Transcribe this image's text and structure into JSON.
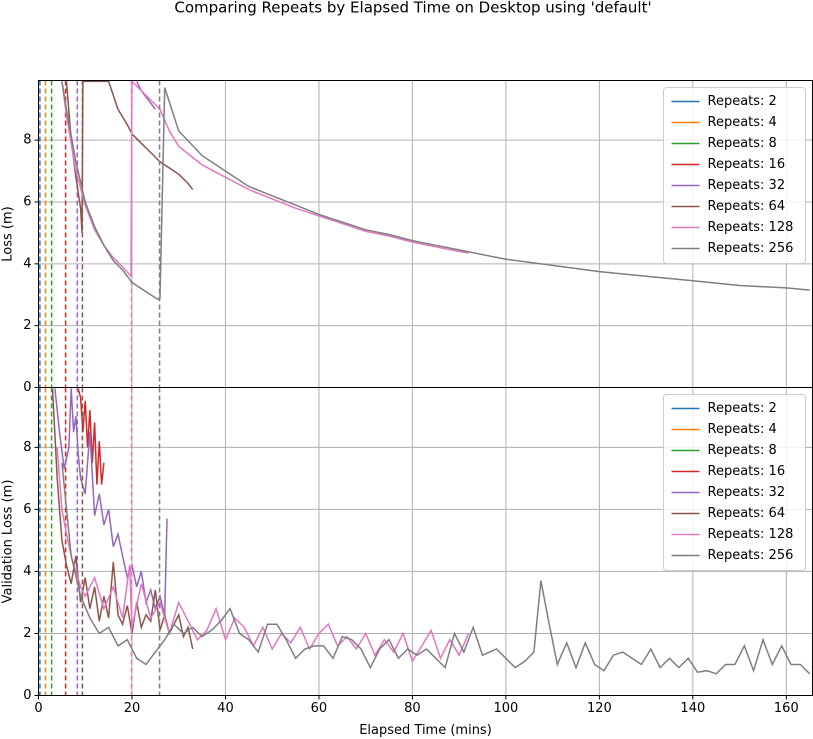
{
  "figure_title": "Comparing Repeats by Elapsed Time on Desktop using 'default'",
  "chart_data": [
    {
      "type": "line",
      "ylabel": "Loss (m)",
      "xlim": [
        0,
        165.6
      ],
      "ylim": [
        0,
        9.93
      ],
      "xticks": [
        0,
        20,
        40,
        60,
        80,
        100,
        120,
        140,
        160
      ],
      "yticks": [
        0,
        2,
        4,
        6,
        8
      ],
      "grid": true,
      "legend": "upper right",
      "show_xtick_labels": false,
      "series": [
        {
          "name": "Repeats: 2",
          "color": "#1f77b4",
          "end_line": 0.3,
          "x": [],
          "values": []
        },
        {
          "name": "Repeats: 4",
          "color": "#ff7f0e",
          "end_line": 1.5,
          "x": [],
          "values": []
        },
        {
          "name": "Repeats: 8",
          "color": "#2ca02c",
          "end_line": 2.8,
          "x": [],
          "values": []
        },
        {
          "name": "Repeats: 16",
          "color": "#d62728",
          "end_line": 5.8,
          "x": [],
          "values": []
        },
        {
          "name": "Repeats: 32",
          "color": "#9467bd",
          "end_line": 8.3,
          "x": [
            21,
            22,
            23,
            24,
            25
          ],
          "values": [
            9.9,
            9.6,
            9.4,
            9.2,
            9.0
          ]
        },
        {
          "name": "Repeats: 64",
          "color": "#8c564b",
          "end_line": 9.4,
          "x": [
            6,
            7,
            8,
            9,
            9.3,
            9.5,
            15,
            17,
            19,
            20,
            22,
            24,
            26,
            28,
            30,
            32,
            33
          ],
          "values": [
            9.9,
            8,
            6.8,
            5.8,
            5.0,
            9.9,
            9.9,
            9,
            8.5,
            8.2,
            7.9,
            7.6,
            7.3,
            7.1,
            6.9,
            6.6,
            6.4
          ]
        },
        {
          "name": "Repeats: 128",
          "color": "#e377c2",
          "end_line": 19.9,
          "x": [
            5,
            6,
            8,
            10,
            12,
            14,
            16,
            18,
            19.8,
            20,
            22,
            24,
            26,
            28,
            30,
            35,
            40,
            45,
            50,
            55,
            60,
            65,
            70,
            75,
            80,
            85,
            90,
            92
          ],
          "values": [
            9.9,
            8.8,
            7,
            5.9,
            5.1,
            4.6,
            4.2,
            3.9,
            3.6,
            9.9,
            9.6,
            9.3,
            9,
            8.3,
            7.8,
            7.2,
            6.8,
            6.4,
            6.1,
            5.8,
            5.55,
            5.3,
            5.05,
            4.9,
            4.7,
            4.55,
            4.4,
            4.35
          ]
        },
        {
          "name": "Repeats: 256",
          "color": "#7f7f7f",
          "end_line": 25.9,
          "x": [
            5,
            6,
            8,
            10,
            12,
            14,
            16,
            18,
            20,
            22,
            24,
            25.5,
            26,
            27,
            30,
            35,
            40,
            45,
            50,
            55,
            60,
            65,
            70,
            75,
            80,
            85,
            90,
            95,
            100,
            110,
            120,
            130,
            140,
            150,
            160,
            165
          ],
          "values": [
            9.9,
            9,
            7.3,
            6,
            5.2,
            4.6,
            4.1,
            3.8,
            3.4,
            3.2,
            3.0,
            2.85,
            2.9,
            9.7,
            8.3,
            7.5,
            7.0,
            6.5,
            6.2,
            5.9,
            5.6,
            5.35,
            5.1,
            4.95,
            4.75,
            4.6,
            4.45,
            4.3,
            4.15,
            3.95,
            3.75,
            3.6,
            3.45,
            3.3,
            3.22,
            3.15
          ]
        }
      ]
    },
    {
      "type": "line",
      "ylabel": "Validation Loss (m)",
      "xlabel": "Elapsed Time (mins)",
      "xlim": [
        0,
        165.6
      ],
      "ylim": [
        0,
        9.93
      ],
      "xticks": [
        0,
        20,
        40,
        60,
        80,
        100,
        120,
        140,
        160
      ],
      "yticks": [
        0,
        2,
        4,
        6,
        8
      ],
      "grid": true,
      "legend": "upper right",
      "show_xtick_labels": true,
      "series": [
        {
          "name": "Repeats: 2",
          "color": "#1f77b4",
          "end_line": 0.3,
          "x": [],
          "values": []
        },
        {
          "name": "Repeats: 4",
          "color": "#ff7f0e",
          "end_line": 1.5,
          "x": [],
          "values": []
        },
        {
          "name": "Repeats: 8",
          "color": "#2ca02c",
          "end_line": 2.8,
          "x": [],
          "values": []
        },
        {
          "name": "Repeats: 16",
          "color": "#d62728",
          "end_line": 5.8,
          "x": [
            8.5,
            9,
            9.5,
            10,
            10.5,
            11,
            11.5,
            12,
            12.5,
            13,
            13.5,
            14
          ],
          "values": [
            9.9,
            9.6,
            8.5,
            9.5,
            8.0,
            9.2,
            7.5,
            8.8,
            6.8,
            8.2,
            6.8,
            7.5
          ]
        },
        {
          "name": "Repeats: 32",
          "color": "#9467bd",
          "end_line": 8.3,
          "x": [
            3.5,
            4.5,
            5.5,
            6.5,
            7,
            7.5,
            8,
            8.5,
            9,
            10,
            11,
            12,
            13,
            14,
            15,
            16,
            17,
            18,
            19,
            20,
            21,
            22,
            23,
            24,
            25,
            26,
            27,
            27.5
          ],
          "values": [
            9.9,
            8.5,
            7.3,
            8.0,
            9.9,
            8.5,
            9.0,
            7.8,
            7.0,
            6.5,
            8.5,
            5.8,
            6.5,
            5.5,
            6.0,
            4.8,
            5.2,
            4.5,
            3.8,
            4.2,
            3.5,
            4.0,
            3.0,
            3.4,
            2.8,
            3.2,
            2.6,
            5.7
          ]
        },
        {
          "name": "Repeats: 64",
          "color": "#8c564b",
          "end_line": 9.4,
          "x": [
            3,
            4,
            5,
            6,
            7,
            8,
            9,
            10,
            11,
            12,
            13,
            14,
            15,
            16,
            17,
            18,
            19,
            20,
            21,
            22,
            23,
            24,
            25,
            26,
            27,
            28,
            29,
            30,
            31,
            32,
            33
          ],
          "values": [
            9.9,
            7,
            5,
            4.2,
            3.6,
            4.5,
            3.0,
            3.8,
            2.8,
            3.5,
            2.4,
            3.2,
            2.5,
            4.3,
            2.6,
            2.3,
            2.9,
            2.0,
            3.0,
            2.2,
            2.6,
            2.4,
            3.4,
            2.1,
            2.6,
            2.0,
            2.3,
            2.6,
            1.9,
            2.2,
            1.5
          ]
        },
        {
          "name": "Repeats: 128",
          "color": "#e377c2",
          "end_line": 19.9,
          "x": [
            4,
            5,
            6,
            7,
            8,
            9,
            10,
            12,
            14,
            16,
            18,
            19.5,
            20,
            22,
            24,
            26,
            28,
            30,
            32,
            34,
            36,
            38,
            40,
            42,
            44,
            46,
            48,
            50,
            52,
            54,
            56,
            58,
            60,
            62,
            64,
            66,
            68,
            70,
            72,
            74,
            76,
            78,
            80,
            82,
            84,
            86,
            88,
            90,
            92
          ],
          "values": [
            8,
            6,
            5.2,
            4.5,
            4.0,
            3.5,
            3.2,
            3.8,
            2.8,
            3.5,
            2.5,
            4.2,
            2.2,
            3.6,
            2.5,
            3.0,
            2.0,
            3.0,
            2.4,
            1.8,
            2.1,
            2.8,
            1.8,
            2.5,
            2.2,
            1.6,
            2.2,
            1.5,
            2.0,
            1.7,
            2.2,
            1.5,
            2.0,
            2.3,
            1.6,
            1.9,
            1.5,
            2.0,
            1.3,
            1.8,
            1.4,
            2.0,
            1.1,
            1.6,
            2.1,
            1.2,
            1.8,
            1.3,
            2.0
          ]
        },
        {
          "name": "Repeats: 256",
          "color": "#7f7f7f",
          "end_line": 25.9,
          "x": [
            5,
            7,
            9,
            11,
            13,
            15,
            17,
            19,
            21,
            23,
            25,
            27,
            29,
            31,
            33,
            35,
            37,
            39,
            41,
            43,
            45,
            47,
            49,
            51,
            53,
            55,
            57,
            59,
            61,
            63,
            65,
            67,
            69,
            71,
            73,
            75,
            77,
            79,
            81,
            83,
            85,
            87,
            89,
            91,
            93,
            95,
            98,
            100,
            102,
            104,
            106,
            107.5,
            109,
            111,
            113,
            115,
            117,
            119,
            121,
            123,
            125,
            127,
            129,
            131,
            133,
            135,
            137,
            139,
            141,
            143,
            145,
            147,
            149,
            151,
            153,
            155,
            157,
            159,
            161,
            163,
            165
          ],
          "values": [
            7.5,
            4.5,
            3.2,
            2.5,
            2.0,
            2.2,
            1.6,
            1.8,
            1.2,
            1.0,
            1.4,
            1.8,
            2.3,
            2.0,
            2.2,
            1.9,
            2.1,
            2.4,
            2.8,
            2.0,
            1.8,
            1.4,
            2.3,
            2.3,
            1.8,
            1.2,
            1.5,
            1.6,
            1.6,
            1.2,
            1.9,
            1.8,
            1.5,
            0.9,
            1.5,
            1.8,
            1.2,
            1.5,
            1.3,
            1.5,
            1.2,
            0.9,
            2.0,
            1.4,
            2.2,
            1.3,
            1.5,
            1.2,
            0.9,
            1.1,
            1.4,
            3.7,
            2.5,
            1.0,
            1.7,
            0.9,
            1.7,
            1.0,
            0.8,
            1.3,
            1.4,
            1.2,
            1.0,
            1.5,
            0.9,
            1.2,
            0.9,
            1.2,
            0.75,
            0.8,
            0.7,
            1.0,
            1.0,
            1.6,
            0.8,
            1.8,
            1.0,
            1.6,
            1.0,
            1.0,
            0.7
          ]
        }
      ]
    }
  ]
}
